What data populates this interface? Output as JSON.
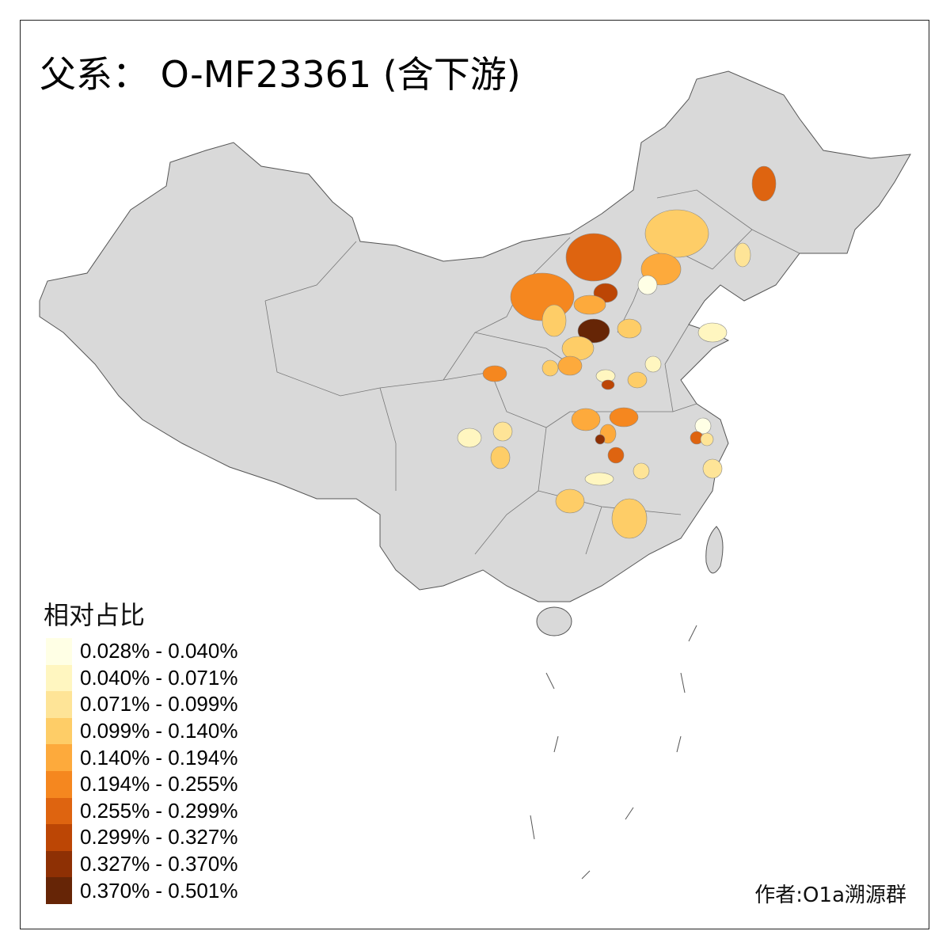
{
  "title": "父系： O-MF23361 (含下游)",
  "legend": {
    "title": "相对占比",
    "bins": [
      {
        "label": "0.028% - 0.040%",
        "color": "#FFFFE5"
      },
      {
        "label": "0.040% - 0.071%",
        "color": "#FFF6C0"
      },
      {
        "label": "0.071% - 0.099%",
        "color": "#FEE497"
      },
      {
        "label": "0.099% - 0.140%",
        "color": "#FECD67"
      },
      {
        "label": "0.140% - 0.194%",
        "color": "#FDAA3C"
      },
      {
        "label": "0.194% - 0.255%",
        "color": "#F5871F"
      },
      {
        "label": "0.255% - 0.299%",
        "color": "#DE6410"
      },
      {
        "label": "0.299% - 0.327%",
        "color": "#BC4605"
      },
      {
        "label": "0.327% - 0.370%",
        "color": "#8E3004"
      },
      {
        "label": "0.370% - 0.501%",
        "color": "#662506"
      }
    ]
  },
  "base_color": "#D9D9D9",
  "region_bins": [
    6,
    3,
    4,
    2,
    0,
    6,
    7,
    5,
    4,
    3,
    9,
    3,
    3,
    4,
    3,
    5,
    1,
    7,
    1,
    3,
    1,
    4,
    5,
    4,
    8,
    6,
    2,
    1,
    3,
    0,
    6,
    2,
    2,
    1,
    2,
    3,
    3
  ],
  "author": "作者:O1a溯源群"
}
